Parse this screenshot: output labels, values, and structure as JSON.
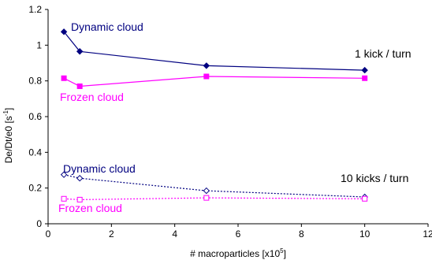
{
  "chart_data": {
    "type": "line",
    "xlabel": "# macroparticles [x10",
    "xlabel_exp": "5",
    "xlabel_end": "]",
    "ylabel": "De/Dt/e0 [s",
    "ylabel_exp": "-1",
    "ylabel_end": "]",
    "xlim": [
      0,
      12
    ],
    "ylim": [
      0,
      1.2
    ],
    "xticks": [
      "0",
      "2",
      "4",
      "6",
      "8",
      "10",
      "12"
    ],
    "yticks": [
      "0",
      "0.2",
      "0.4",
      "0.6",
      "0.8",
      "1",
      "1.2"
    ],
    "grid": false,
    "series": [
      {
        "key": "dyn1",
        "x": [
          0.5,
          1,
          5,
          10
        ],
        "values": [
          1.075,
          0.965,
          0.885,
          0.86
        ],
        "color": "#000080",
        "marker": "diamond-filled",
        "line": "solid"
      },
      {
        "key": "frz1",
        "x": [
          0.5,
          1,
          5,
          10
        ],
        "values": [
          0.815,
          0.77,
          0.825,
          0.815
        ],
        "color": "#FF00FF",
        "marker": "square-filled",
        "line": "solid"
      },
      {
        "key": "dyn10",
        "x": [
          0.5,
          1,
          5,
          10
        ],
        "values": [
          0.275,
          0.255,
          0.185,
          0.15
        ],
        "color": "#000080",
        "marker": "diamond-open",
        "line": "dotted"
      },
      {
        "key": "frz10",
        "x": [
          0.5,
          1,
          5,
          10
        ],
        "values": [
          0.14,
          0.135,
          0.145,
          0.14
        ],
        "color": "#FF00FF",
        "marker": "square-open",
        "line": "dotted"
      }
    ],
    "annotations": [
      {
        "key": "dyn1",
        "text": "Dynamic cloud",
        "color": "#000080"
      },
      {
        "key": "frz1",
        "text": "Frozen cloud",
        "color": "#FF00FF"
      },
      {
        "key": "kick1",
        "text": "1 kick / turn",
        "color": "#000000"
      },
      {
        "key": "dyn10",
        "text": "Dynamic cloud",
        "color": "#000080"
      },
      {
        "key": "kick10",
        "text": "10 kicks / turn",
        "color": "#000000"
      },
      {
        "key": "frz10",
        "text": "Frozen cloud",
        "color": "#FF00FF"
      }
    ]
  }
}
